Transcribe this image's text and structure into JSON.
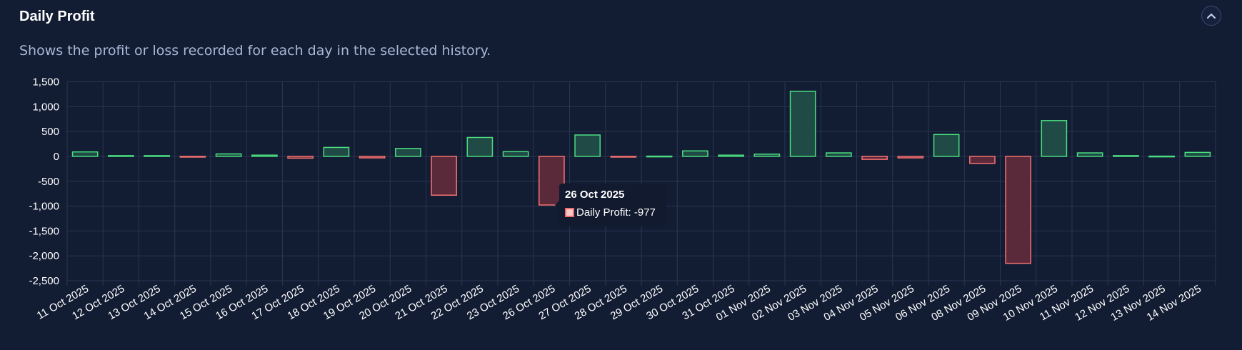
{
  "header": {
    "title": "Daily Profit",
    "subtitle": "Shows the profit or loss recorded for each day in the selected history.",
    "collapse_icon": "chevron-up-icon"
  },
  "colors": {
    "background": "#121c33",
    "grid": "#2a3650",
    "positive_fill": "#1f4a46",
    "positive_stroke": "#4ade80",
    "negative_fill": "#5b2a3a",
    "negative_stroke": "#f87171",
    "text": "#ffffff",
    "subtitle": "#a9b8d6"
  },
  "tooltip": {
    "date": "26 Oct 2025",
    "label": "Daily Profit: -977"
  },
  "chart_data": {
    "type": "bar",
    "categories": [
      "11 Oct 2025",
      "12 Oct 2025",
      "13 Oct 2025",
      "14 Oct 2025",
      "15 Oct 2025",
      "16 Oct 2025",
      "17 Oct 2025",
      "18 Oct 2025",
      "19 Oct 2025",
      "20 Oct 2025",
      "21 Oct 2025",
      "22 Oct 2025",
      "23 Oct 2025",
      "26 Oct 2025",
      "27 Oct 2025",
      "28 Oct 2025",
      "29 Oct 2025",
      "30 Oct 2025",
      "31 Oct 2025",
      "01 Nov 2025",
      "02 Nov 2025",
      "03 Nov 2025",
      "04 Nov 2025",
      "05 Nov 2025",
      "06 Nov 2025",
      "08 Nov 2025",
      "09 Nov 2025",
      "10 Nov 2025",
      "11 Nov 2025",
      "12 Nov 2025",
      "13 Nov 2025",
      "14 Nov 2025"
    ],
    "series": [
      {
        "name": "Daily Profit",
        "values": [
          90,
          15,
          15,
          -10,
          50,
          25,
          -35,
          180,
          -30,
          160,
          -780,
          380,
          95,
          -977,
          430,
          -10,
          5,
          110,
          25,
          45,
          1310,
          70,
          -60,
          -30,
          440,
          -140,
          -2150,
          720,
          70,
          15,
          5,
          80
        ]
      }
    ],
    "yticks": [
      1500,
      1000,
      500,
      0,
      -500,
      -1000,
      -1500,
      -2000,
      -2500
    ],
    "ytick_labels": [
      "1,500",
      "1,000",
      "500",
      "0",
      "-500",
      "-1,000",
      "-1,500",
      "-2,000",
      "-2,500"
    ],
    "ylim": [
      -2500,
      1500
    ],
    "grid": true,
    "legend": "none",
    "title": "",
    "xlabel": "",
    "ylabel": ""
  }
}
